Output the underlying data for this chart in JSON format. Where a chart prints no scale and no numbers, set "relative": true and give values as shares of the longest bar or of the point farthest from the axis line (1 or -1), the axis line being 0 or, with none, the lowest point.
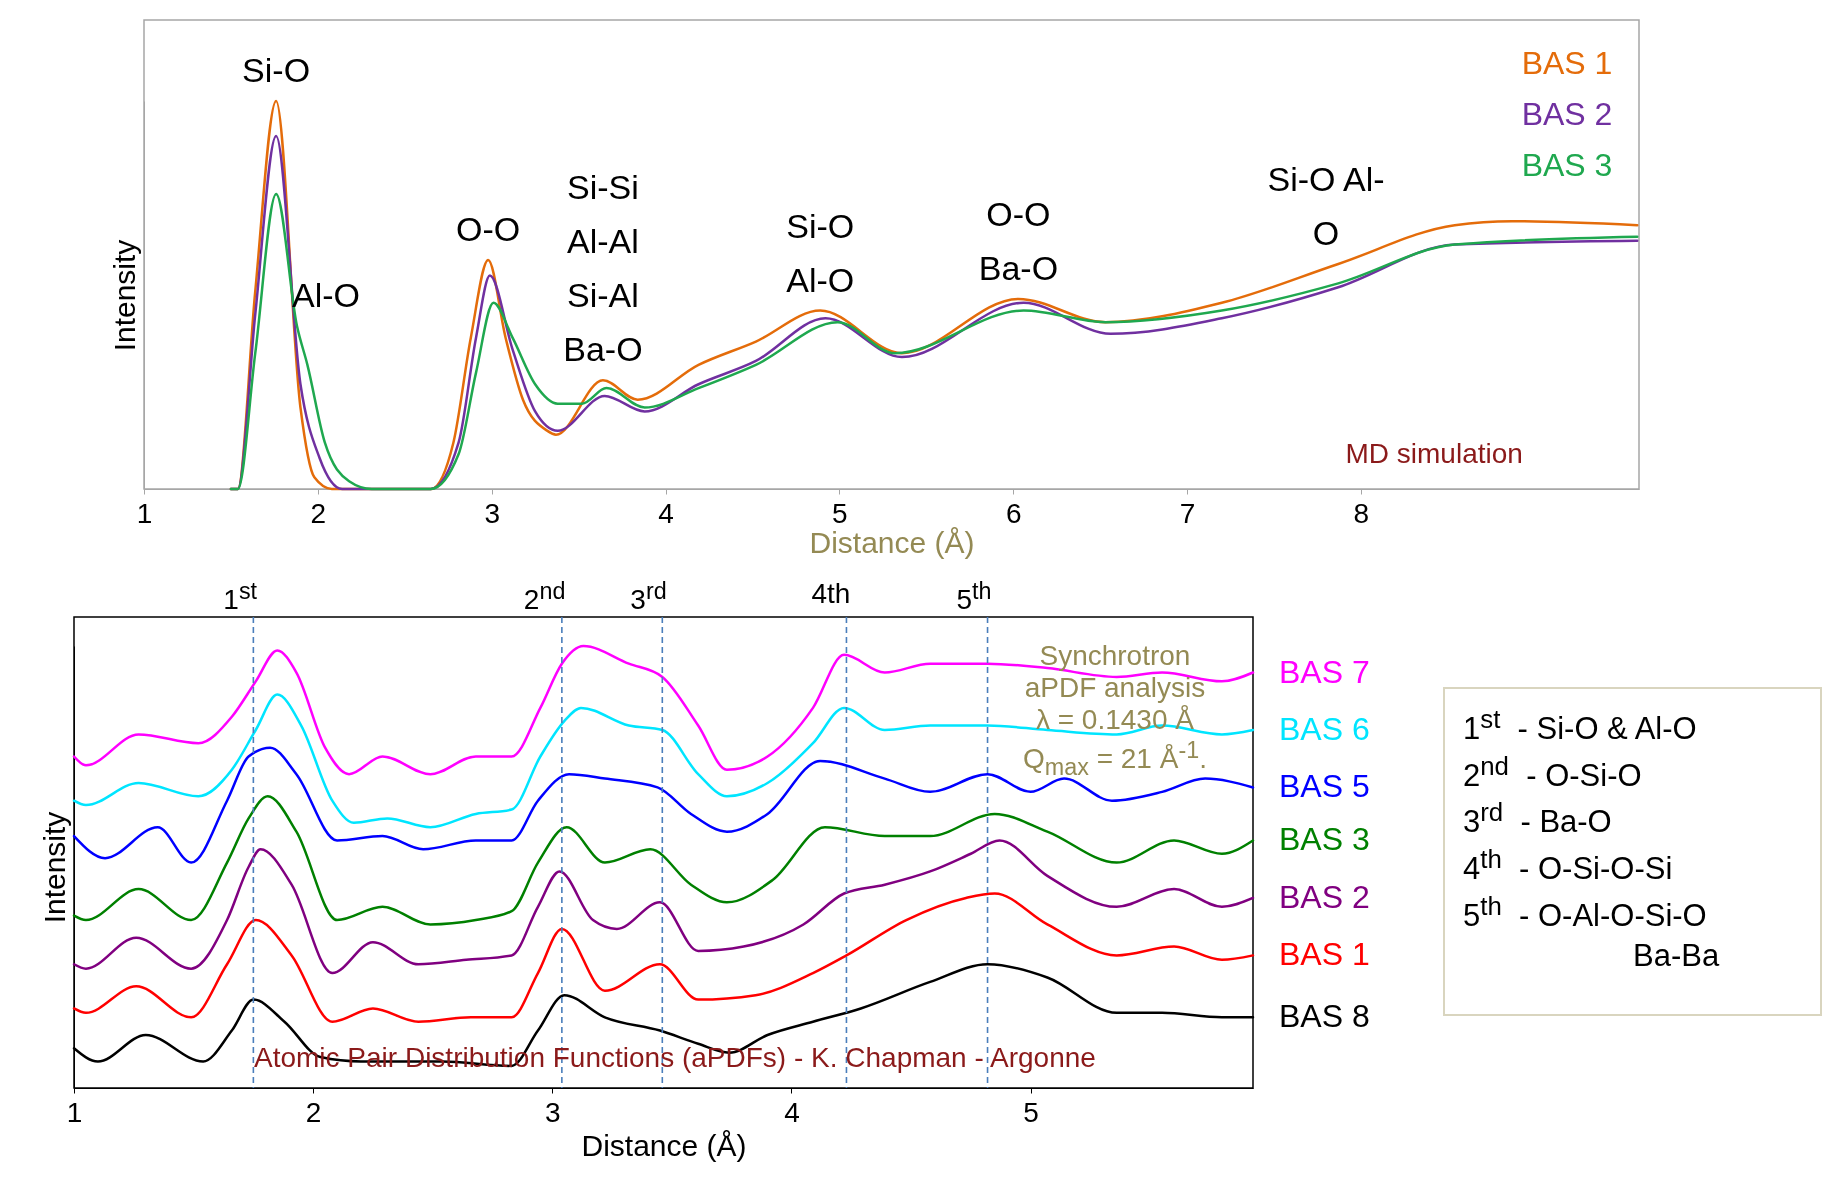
{
  "chart_data": [
    {
      "type": "line",
      "relative": true,
      "xlabel": "Distance (Å)",
      "ylabel": "Intensity",
      "xlim": [
        1,
        9.6
      ],
      "xticks": [
        1,
        2,
        3,
        4,
        5,
        6,
        7,
        8
      ],
      "legend": "top right",
      "grid": false,
      "annotations": [
        {
          "text": "Si-O",
          "x": 1.76,
          "y": 1.0
        },
        "Al-O",
        {
          "text": "O-O",
          "x": 2.98,
          "y": 0.59
        },
        {
          "text": "Si-Si\nAl-Al\nSi-Al\nBa-O",
          "x": 3.64,
          "y": 0.28
        },
        {
          "text": "Si-O\nAl-O",
          "x": 4.89,
          "y": 0.46
        },
        {
          "text": "O-O\nBa-O",
          "x": 6.03,
          "y": 0.49
        },
        {
          "text": "Si-O Al-\nO",
          "x": 7.8,
          "y": 0.58
        },
        "MD simulation"
      ],
      "series": [
        {
          "name": "BAS 1",
          "color": "#e46c0a",
          "x": [
            1.5,
            1.54,
            1.64,
            1.76,
            1.9,
            1.98,
            2.08,
            2.65,
            2.78,
            2.88,
            2.98,
            3.08,
            3.18,
            3.32,
            3.37,
            3.64,
            3.84,
            4.19,
            4.52,
            4.89,
            5.36,
            6.03,
            6.53,
            7.2,
            7.87,
            8.54,
            8.87,
            9.59
          ],
          "values": [
            0,
            0,
            0.51,
            1.0,
            0.21,
            0.03,
            0,
            0,
            0.12,
            0.39,
            0.59,
            0.39,
            0.23,
            0.15,
            0.14,
            0.28,
            0.23,
            0.32,
            0.38,
            0.46,
            0.35,
            0.49,
            0.43,
            0.48,
            0.58,
            0.68,
            0.69,
            0.68
          ]
        },
        {
          "name": "BAS 2",
          "color": "#7030a0",
          "x": [
            1.5,
            1.54,
            1.64,
            1.76,
            1.9,
            2.01,
            2.14,
            2.65,
            2.81,
            2.91,
            2.99,
            3.12,
            3.25,
            3.38,
            3.65,
            3.88,
            4.19,
            4.52,
            4.92,
            5.36,
            6.06,
            6.56,
            7.2,
            7.87,
            8.54,
            9.59
          ],
          "values": [
            0,
            0,
            0.45,
            0.91,
            0.27,
            0.08,
            0,
            0,
            0.12,
            0.39,
            0.55,
            0.36,
            0.2,
            0.15,
            0.24,
            0.2,
            0.27,
            0.33,
            0.44,
            0.34,
            0.48,
            0.4,
            0.44,
            0.52,
            0.63,
            0.64
          ]
        },
        {
          "name": "BAS 3",
          "color": "#1fa84f",
          "x": [
            1.5,
            1.54,
            1.64,
            1.76,
            1.88,
            1.94,
            2.04,
            2.18,
            2.31,
            2.65,
            2.81,
            2.91,
            3.01,
            3.12,
            3.25,
            3.38,
            3.52,
            3.66,
            3.88,
            4.19,
            4.52,
            4.99,
            5.32,
            6.06,
            6.53,
            7.2,
            7.87,
            8.54,
            9.59
          ],
          "values": [
            0,
            0,
            0.35,
            0.76,
            0.42,
            0.32,
            0.12,
            0.02,
            0,
            0,
            0.09,
            0.3,
            0.48,
            0.39,
            0.27,
            0.22,
            0.22,
            0.26,
            0.21,
            0.26,
            0.32,
            0.43,
            0.35,
            0.46,
            0.43,
            0.46,
            0.53,
            0.63,
            0.65
          ]
        }
      ]
    },
    {
      "type": "line",
      "relative": true,
      "xlabel": "Distance (Å)",
      "ylabel": "Intensity",
      "xlim": [
        1,
        5.93
      ],
      "xticks": [
        1,
        2,
        3,
        4,
        5
      ],
      "legend": "right",
      "grid": false,
      "ref_lines": [
        {
          "axis": "x",
          "value": 1.75,
          "label": "1$^{st}$",
          "color": "#4a7ebb",
          "line_style": "dashed"
        },
        {
          "axis": "x",
          "value": 3.04,
          "label": "2$^{nd}$",
          "color": "#4a7ebb",
          "line_style": "dashed"
        },
        {
          "axis": "x",
          "value": 3.46,
          "label": "3$^{rd}$",
          "color": "#4a7ebb",
          "line_style": "dashed"
        },
        {
          "axis": "x",
          "value": 4.23,
          "label": "4th",
          "color": "#4a7ebb",
          "line_style": "dashed"
        },
        {
          "axis": "x",
          "value": 4.82,
          "label": "5$^{th}$",
          "color": "#4a7ebb",
          "line_style": "dashed"
        }
      ],
      "annotations": [
        "Synchrotron\naPDF analysis\nλ = 0.1430 Å\nQ$_{max}$ = 21 Å$^{-1}$.",
        "Atomic Pair Distribution Functions (aPDFs) - K. Chapman - Argonne"
      ],
      "series": [
        {
          "name": "BAS 7",
          "color": "#ff00ff",
          "x": [
            1.0,
            1.05,
            1.27,
            1.52,
            1.66,
            1.76,
            1.85,
            1.93,
            2.05,
            2.15,
            2.29,
            2.49,
            2.68,
            2.83,
            2.95,
            3.04,
            3.13,
            3.32,
            3.46,
            3.61,
            3.73,
            3.9,
            4.09,
            4.22,
            4.39,
            4.58,
            4.82,
            5.07,
            5.36,
            5.55,
            5.8,
            5.93
          ],
          "values": [
            0.75,
            0.73,
            0.8,
            0.78,
            0.84,
            0.92,
            0.99,
            0.94,
            0.77,
            0.71,
            0.75,
            0.71,
            0.75,
            0.75,
            0.86,
            0.96,
            1.0,
            0.96,
            0.93,
            0.82,
            0.72,
            0.75,
            0.86,
            0.98,
            0.94,
            0.96,
            0.96,
            0.95,
            0.93,
            0.94,
            0.92,
            0.94
          ]
        },
        {
          "name": "BAS 6",
          "color": "#00e5ff",
          "x": [
            1.0,
            1.05,
            1.27,
            1.52,
            1.66,
            1.76,
            1.85,
            1.95,
            2.08,
            2.17,
            2.31,
            2.49,
            2.68,
            2.83,
            2.95,
            3.05,
            3.12,
            3.32,
            3.46,
            3.61,
            3.73,
            3.9,
            4.09,
            4.22,
            4.39,
            4.58,
            4.82,
            5.07,
            5.36,
            5.55,
            5.8,
            5.93
          ],
          "values": [
            0.65,
            0.64,
            0.69,
            0.66,
            0.72,
            0.81,
            0.89,
            0.82,
            0.65,
            0.6,
            0.61,
            0.59,
            0.62,
            0.63,
            0.75,
            0.83,
            0.86,
            0.82,
            0.81,
            0.71,
            0.66,
            0.69,
            0.78,
            0.86,
            0.81,
            0.82,
            0.82,
            0.81,
            0.8,
            0.82,
            0.8,
            0.81
          ]
        },
        {
          "name": "BAS 5",
          "color": "#0000ff",
          "x": [
            1.0,
            1.13,
            1.35,
            1.49,
            1.64,
            1.73,
            1.82,
            1.93,
            2.1,
            2.29,
            2.46,
            2.68,
            2.83,
            2.94,
            3.07,
            3.22,
            3.44,
            3.58,
            3.73,
            3.9,
            4.12,
            4.39,
            4.58,
            4.82,
            5.0,
            5.14,
            5.34,
            5.55,
            5.73,
            5.93
          ],
          "values": [
            0.57,
            0.52,
            0.59,
            0.51,
            0.65,
            0.75,
            0.77,
            0.71,
            0.56,
            0.57,
            0.54,
            0.56,
            0.56,
            0.65,
            0.71,
            0.7,
            0.68,
            0.62,
            0.58,
            0.62,
            0.74,
            0.7,
            0.67,
            0.71,
            0.67,
            0.7,
            0.65,
            0.67,
            0.7,
            0.68
          ]
        },
        {
          "name": "BAS 3",
          "color": "#008000",
          "x": [
            1.0,
            1.05,
            1.27,
            1.49,
            1.64,
            1.73,
            1.81,
            1.93,
            2.1,
            2.29,
            2.49,
            2.68,
            2.83,
            2.94,
            3.06,
            3.22,
            3.41,
            3.58,
            3.73,
            3.92,
            4.14,
            4.39,
            4.58,
            4.85,
            5.07,
            5.36,
            5.6,
            5.8,
            5.93
          ],
          "values": [
            0.39,
            0.38,
            0.45,
            0.38,
            0.51,
            0.61,
            0.66,
            0.58,
            0.38,
            0.41,
            0.37,
            0.38,
            0.4,
            0.51,
            0.59,
            0.51,
            0.54,
            0.46,
            0.42,
            0.47,
            0.59,
            0.57,
            0.57,
            0.62,
            0.58,
            0.51,
            0.56,
            0.53,
            0.56
          ]
        },
        {
          "name": "BAS 2",
          "color": "#800080",
          "x": [
            1.0,
            1.05,
            1.26,
            1.49,
            1.64,
            1.73,
            1.78,
            1.91,
            2.08,
            2.25,
            2.44,
            2.64,
            2.83,
            2.94,
            3.03,
            3.17,
            3.27,
            3.45,
            3.61,
            3.8,
            4.05,
            4.22,
            4.39,
            4.58,
            4.75,
            4.87,
            5.07,
            5.36,
            5.6,
            5.8,
            5.93
          ],
          "values": [
            0.28,
            0.27,
            0.34,
            0.27,
            0.38,
            0.5,
            0.54,
            0.46,
            0.26,
            0.33,
            0.28,
            0.29,
            0.3,
            0.41,
            0.49,
            0.38,
            0.36,
            0.42,
            0.31,
            0.32,
            0.37,
            0.44,
            0.46,
            0.49,
            0.53,
            0.56,
            0.48,
            0.41,
            0.45,
            0.41,
            0.43
          ]
        },
        {
          "name": "BAS 1",
          "color": "#ff0000",
          "x": [
            1.0,
            1.05,
            1.26,
            1.49,
            1.64,
            1.76,
            1.91,
            2.08,
            2.25,
            2.44,
            2.66,
            2.83,
            2.94,
            3.04,
            3.22,
            3.45,
            3.61,
            3.85,
            4.09,
            4.23,
            4.48,
            4.73,
            4.85,
            5.07,
            5.36,
            5.6,
            5.8,
            5.93
          ],
          "values": [
            0.18,
            0.17,
            0.23,
            0.16,
            0.28,
            0.38,
            0.3,
            0.15,
            0.18,
            0.15,
            0.16,
            0.16,
            0.26,
            0.36,
            0.22,
            0.28,
            0.2,
            0.21,
            0.26,
            0.3,
            0.38,
            0.43,
            0.44,
            0.37,
            0.3,
            0.32,
            0.29,
            0.3
          ]
        },
        {
          "name": "BAS 8",
          "color": "#000000",
          "x": [
            1.0,
            1.1,
            1.3,
            1.54,
            1.66,
            1.75,
            1.88,
            2.03,
            2.2,
            2.54,
            2.83,
            2.94,
            3.05,
            3.22,
            3.45,
            3.61,
            3.74,
            3.9,
            4.09,
            4.29,
            4.58,
            4.82,
            5.07,
            5.36,
            5.55,
            5.8,
            5.93
          ],
          "values": [
            0.09,
            0.06,
            0.12,
            0.06,
            0.13,
            0.2,
            0.15,
            0.07,
            0.06,
            0.06,
            0.05,
            0.13,
            0.21,
            0.16,
            0.13,
            0.1,
            0.08,
            0.12,
            0.15,
            0.18,
            0.24,
            0.28,
            0.25,
            0.17,
            0.17,
            0.16,
            0.16
          ]
        }
      ]
    },
    {
      "type": "other",
      "annotations": [
        "1$^{st}$  - Si-O & Al-O",
        "2$^{nd}$  - O-Si-O",
        "3$^{rd}$  - Ba-O",
        "4$^{th}$  - O-Si-O-Si",
        "5$^{th}$  - O-Al-O-Si-O\nBa-Ba"
      ]
    }
  ]
}
